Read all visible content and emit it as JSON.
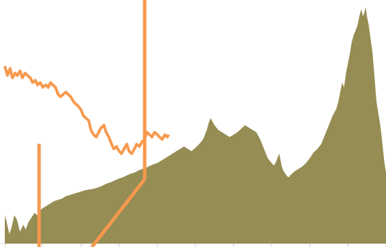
{
  "chart_data": {
    "type": "area",
    "title": "",
    "xlabel": "",
    "ylabel": "",
    "grid": false,
    "legend": "none",
    "x_range": [
      0,
      100
    ],
    "y_range": [
      0,
      100
    ],
    "x_tick_count": 10,
    "series": [
      {
        "type": "area",
        "color": "#958d53",
        "x": [
          0.0,
          0.5,
          1.2,
          1.8,
          2.5,
          3.2,
          4.0,
          4.8,
          5.5,
          6.2,
          7.0,
          7.8,
          8.5,
          9.2,
          10.0,
          11.0,
          12.0,
          13.0,
          14.0,
          15.0,
          16.0,
          17.0,
          18.0,
          19.0,
          20.0,
          21.0,
          22.0,
          23.0,
          24.0,
          25.0,
          26.0,
          27.0,
          28.0,
          29.0,
          30.0,
          31.0,
          32.0,
          33.0,
          34.0,
          35.0,
          36.0,
          37.0,
          38.0,
          39.0,
          40.0,
          41.0,
          42.0,
          43.0,
          44.0,
          45.0,
          46.0,
          47.0,
          48.0,
          49.0,
          50.0,
          51.0,
          52.0,
          53.0,
          53.5,
          54.0,
          55.0,
          56.0,
          57.0,
          58.0,
          59.0,
          60.0,
          61.0,
          62.0,
          63.0,
          64.0,
          65.0,
          66.0,
          67.0,
          68.0,
          69.0,
          70.0,
          70.6,
          71.0,
          71.5,
          72.0,
          72.6,
          73.0,
          73.6,
          74.0,
          74.5,
          75.0,
          75.7,
          76.0,
          76.5,
          77.0,
          78.0,
          79.0,
          80.0,
          81.0,
          82.0,
          83.0,
          84.0,
          85.0,
          85.5,
          86.0,
          87.0,
          87.5,
          88.0,
          88.5,
          89.0,
          89.5,
          90.0,
          90.5,
          91.0,
          91.5,
          92.0,
          92.5,
          93.0,
          93.5,
          94.0,
          94.4,
          94.7,
          95.0,
          95.5,
          96.0,
          96.5,
          97.0,
          97.5,
          98.0,
          98.5,
          98.8,
          99.2,
          99.6,
          100.0
        ],
        "y": [
          12.0,
          9.0,
          4.0,
          7.0,
          12.0,
          10.0,
          5.0,
          8.0,
          6.0,
          9.0,
          11.0,
          13.0,
          12.0,
          14.0,
          15.0,
          16.0,
          17.0,
          18.0,
          18.5,
          19.0,
          20.0,
          20.5,
          21.0,
          21.5,
          22.0,
          22.5,
          22.8,
          23.0,
          23.5,
          24.0,
          24.8,
          25.5,
          26.0,
          26.8,
          27.5,
          28.0,
          28.8,
          29.5,
          30.0,
          30.8,
          31.5,
          32.0,
          32.8,
          33.5,
          34.0,
          35.0,
          36.0,
          37.0,
          38.0,
          39.0,
          40.0,
          41.0,
          40.0,
          39.0,
          40.5,
          42.0,
          44.0,
          48.0,
          51.0,
          53.0,
          50.0,
          48.0,
          47.0,
          46.0,
          45.0,
          46.0,
          47.0,
          48.5,
          50.0,
          49.0,
          48.0,
          47.0,
          44.0,
          40.0,
          36.0,
          34.0,
          33.0,
          34.0,
          36.0,
          38.0,
          33.0,
          31.0,
          29.5,
          28.5,
          28.0,
          29.0,
          30.0,
          30.5,
          31.0,
          31.5,
          32.5,
          34.0,
          36.0,
          38.5,
          40.0,
          42.0,
          46.0,
          50.0,
          52.0,
          54.0,
          57.0,
          60.0,
          64.0,
          68.0,
          66.0,
          72.0,
          76.0,
          80.0,
          85.0,
          88.0,
          90.0,
          92.0,
          96.0,
          99.0,
          96.0,
          98.0,
          100.0,
          96.0,
          92.0,
          86.0,
          80.0,
          70.0,
          60.0,
          55.0,
          50.0,
          46.0,
          40.0,
          34.0,
          30.0
        ]
      },
      {
        "type": "line",
        "color": "#f7994d",
        "x": [
          0.0,
          0.7,
          1.4,
          2.0,
          2.7,
          3.3,
          4.0,
          4.6,
          5.3,
          6.0,
          6.7,
          7.3,
          8.0,
          8.6,
          9.3,
          10.0,
          10.7,
          11.4,
          12.0,
          12.6,
          13.3,
          14.0,
          14.6,
          15.3,
          16.0,
          16.6,
          17.3,
          18.0,
          18.6,
          19.3,
          20.0,
          20.6,
          21.3,
          22.0,
          22.6,
          23.3,
          24.0,
          24.6,
          25.3,
          26.0,
          26.6,
          27.3,
          28.0,
          28.6,
          29.3,
          30.0,
          30.6,
          31.3,
          32.0,
          32.6,
          33.3,
          34.0,
          34.6,
          35.3,
          36.0,
          36.6,
          37.3,
          38.0,
          38.6,
          39.3,
          40.0,
          40.6,
          41.3,
          42.0,
          42.6,
          43.0
        ],
        "y": [
          75.0,
          71.0,
          74.0,
          70.0,
          72.0,
          71.0,
          73.0,
          70.0,
          72.0,
          71.0,
          70.0,
          68.0,
          69.0,
          67.0,
          68.0,
          66.0,
          67.0,
          66.0,
          68.0,
          67.0,
          66.0,
          63.0,
          62.0,
          63.0,
          64.0,
          63.0,
          62.0,
          60.0,
          59.0,
          58.0,
          56.5,
          54.0,
          53.0,
          52.0,
          48.0,
          46.0,
          45.0,
          47.0,
          49.0,
          50.0,
          47.0,
          45.0,
          42.0,
          40.0,
          41.0,
          39.0,
          38.0,
          40.0,
          42.0,
          39.0,
          38.0,
          40.0,
          42.0,
          41.0,
          43.0,
          44.0,
          47.0,
          46.0,
          45.0,
          47.0,
          46.0,
          45.0,
          44.0,
          46.0,
          45.0,
          46.0
        ]
      }
    ]
  }
}
